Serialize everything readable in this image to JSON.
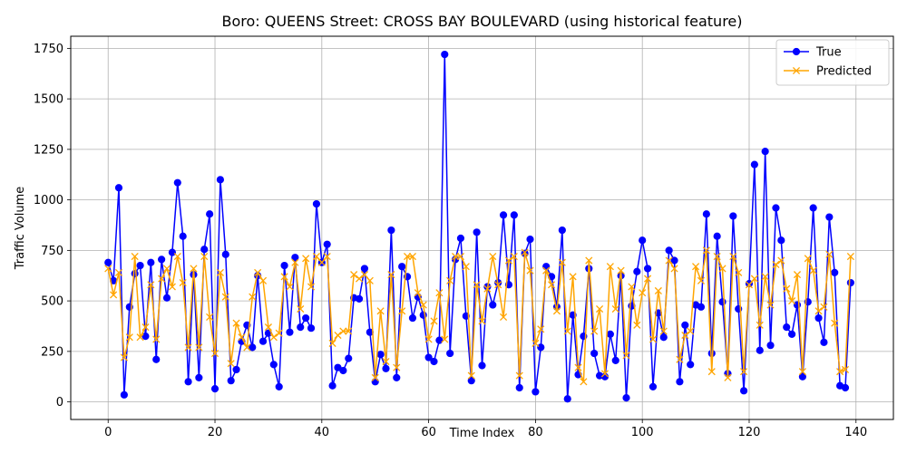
{
  "chart_data": {
    "type": "line",
    "title": "Boro: QUEENS Street: CROSS BAY BOULEVARD (using historical feature)",
    "xlabel": "Time Index",
    "ylabel": "Traffic Volume",
    "xlim": [
      -7,
      147
    ],
    "ylim": [
      -87,
      1810
    ],
    "xticks": [
      0,
      20,
      40,
      60,
      80,
      100,
      120,
      140
    ],
    "yticks": [
      0,
      250,
      500,
      750,
      1000,
      1250,
      1500,
      1750
    ],
    "grid": true,
    "legend_position": "top-right",
    "series": [
      {
        "name": "True",
        "color": "#0000ff",
        "marker": "circle",
        "values": [
          690,
          600,
          1060,
          35,
          470,
          635,
          675,
          325,
          690,
          210,
          705,
          515,
          740,
          1085,
          820,
          100,
          630,
          120,
          755,
          930,
          65,
          1100,
          730,
          105,
          160,
          300,
          380,
          270,
          625,
          300,
          340,
          185,
          75,
          675,
          345,
          715,
          370,
          415,
          365,
          980,
          690,
          780,
          80,
          170,
          155,
          215,
          515,
          510,
          660,
          345,
          100,
          235,
          165,
          850,
          120,
          670,
          620,
          415,
          520,
          430,
          220,
          200,
          305,
          1720,
          240,
          705,
          810,
          425,
          105,
          840,
          180,
          570,
          480,
          590,
          925,
          580,
          925,
          70,
          735,
          805,
          50,
          270,
          670,
          620,
          470,
          850,
          15,
          430,
          135,
          325,
          660,
          240,
          130,
          125,
          335,
          205,
          625,
          20,
          475,
          645,
          800,
          660,
          75,
          440,
          320,
          750,
          700,
          100,
          380,
          185,
          480,
          470,
          930,
          240,
          820,
          495,
          140,
          920,
          460,
          55,
          585,
          1175,
          255,
          1240,
          280,
          960,
          800,
          370,
          335,
          480,
          125,
          495,
          960,
          415,
          295,
          915,
          640,
          80,
          70,
          590
        ]
      },
      {
        "name": "Predicted",
        "color": "#ffa500",
        "marker": "x",
        "values": [
          660,
          530,
          640,
          220,
          320,
          720,
          320,
          370,
          580,
          310,
          610,
          660,
          570,
          720,
          590,
          270,
          660,
          270,
          720,
          420,
          240,
          640,
          520,
          190,
          390,
          320,
          270,
          520,
          640,
          600,
          370,
          320,
          340,
          620,
          570,
          690,
          460,
          710,
          570,
          720,
          690,
          720,
          290,
          330,
          350,
          350,
          630,
          610,
          630,
          600,
          120,
          450,
          200,
          630,
          170,
          450,
          720,
          720,
          540,
          480,
          310,
          400,
          540,
          310,
          600,
          720,
          720,
          670,
          130,
          580,
          400,
          560,
          720,
          580,
          420,
          700,
          720,
          130,
          740,
          650,
          290,
          360,
          650,
          580,
          450,
          690,
          350,
          620,
          170,
          100,
          700,
          350,
          460,
          140,
          670,
          460,
          650,
          230,
          570,
          380,
          540,
          610,
          310,
          550,
          350,
          700,
          660,
          210,
          330,
          350,
          670,
          600,
          750,
          150,
          720,
          660,
          120,
          720,
          640,
          150,
          580,
          610,
          380,
          620,
          480,
          680,
          700,
          560,
          500,
          630,
          150,
          710,
          650,
          450,
          470,
          730,
          390,
          150,
          160,
          720
        ]
      }
    ]
  }
}
